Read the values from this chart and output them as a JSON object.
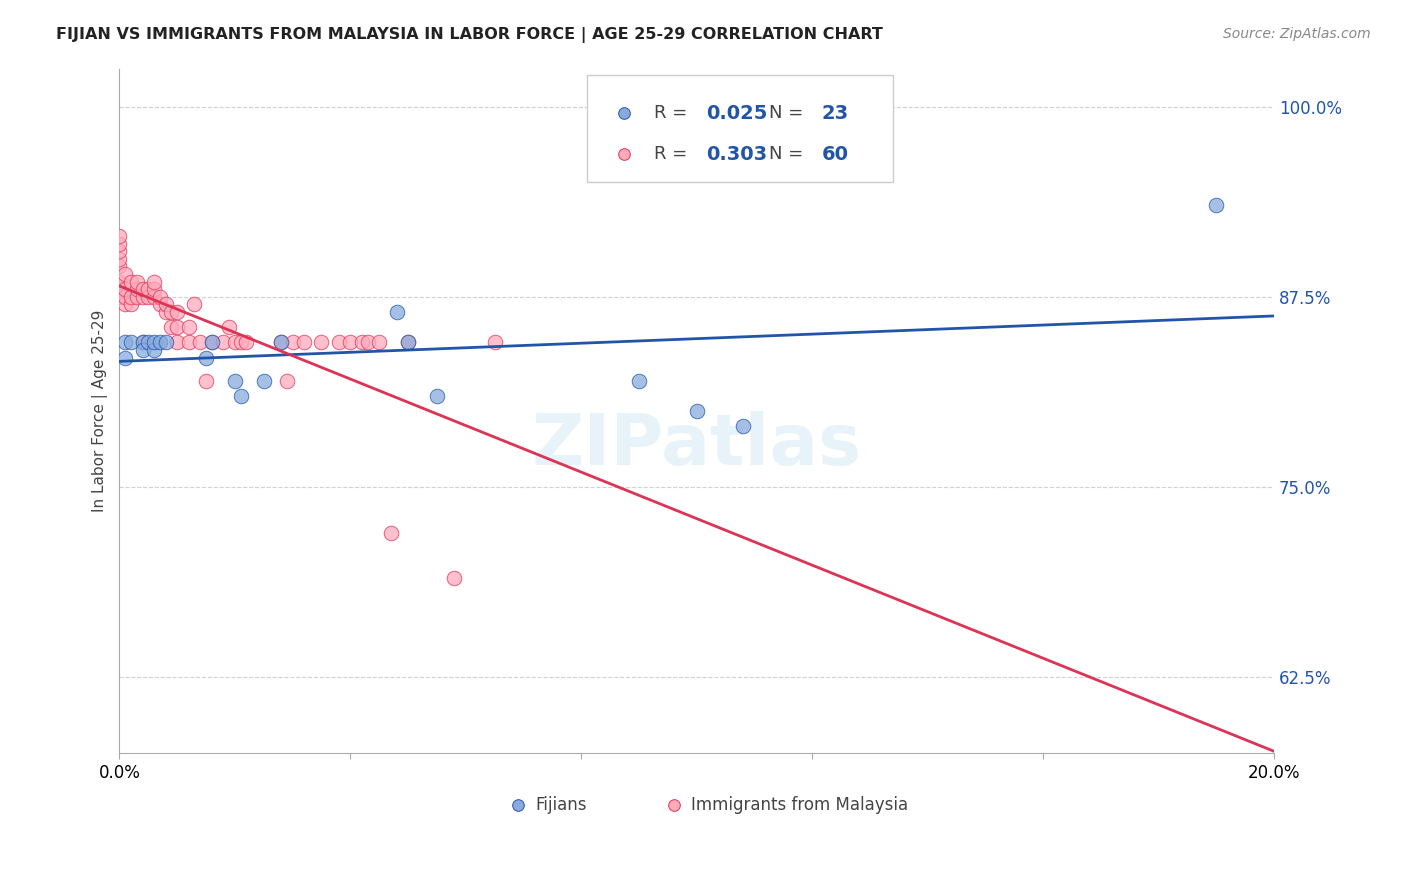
{
  "title": "FIJIAN VS IMMIGRANTS FROM MALAYSIA IN LABOR FORCE | AGE 25-29 CORRELATION CHART",
  "source": "Source: ZipAtlas.com",
  "ylabel": "In Labor Force | Age 25-29",
  "watermark": "ZIPatlas",
  "xlim": [
    0.0,
    0.2
  ],
  "ylim": [
    0.575,
    1.025
  ],
  "yticks": [
    0.625,
    0.75,
    0.875,
    1.0
  ],
  "ytick_labels": [
    "62.5%",
    "75.0%",
    "87.5%",
    "100.0%"
  ],
  "xticks": [
    0.0,
    0.04,
    0.08,
    0.12,
    0.16,
    0.2
  ],
  "xtick_labels": [
    "0.0%",
    "",
    "",
    "",
    "",
    "20.0%"
  ],
  "fijian_R": 0.025,
  "fijian_N": 23,
  "malaysia_R": 0.303,
  "malaysia_N": 60,
  "fijian_color": "#88AADD",
  "malaysia_color": "#FFAABB",
  "trend_fijian_color": "#2255AA",
  "trend_malaysia_color": "#DD3355",
  "fijian_x": [
    0.001,
    0.001,
    0.002,
    0.004,
    0.004,
    0.005,
    0.006,
    0.006,
    0.007,
    0.008,
    0.015,
    0.016,
    0.02,
    0.021,
    0.025,
    0.028,
    0.048,
    0.05,
    0.055,
    0.09,
    0.1,
    0.108,
    0.19
  ],
  "fijian_y": [
    0.845,
    0.835,
    0.845,
    0.845,
    0.84,
    0.845,
    0.84,
    0.845,
    0.845,
    0.845,
    0.835,
    0.845,
    0.82,
    0.81,
    0.82,
    0.845,
    0.865,
    0.845,
    0.81,
    0.82,
    0.8,
    0.79,
    0.935
  ],
  "malaysia_x": [
    0.0,
    0.0,
    0.0,
    0.0,
    0.0,
    0.0,
    0.0,
    0.0,
    0.001,
    0.001,
    0.001,
    0.001,
    0.002,
    0.002,
    0.002,
    0.003,
    0.003,
    0.003,
    0.004,
    0.004,
    0.004,
    0.005,
    0.005,
    0.006,
    0.006,
    0.006,
    0.007,
    0.007,
    0.008,
    0.008,
    0.009,
    0.009,
    0.01,
    0.01,
    0.01,
    0.012,
    0.012,
    0.013,
    0.014,
    0.015,
    0.016,
    0.018,
    0.019,
    0.02,
    0.021,
    0.022,
    0.028,
    0.029,
    0.03,
    0.032,
    0.035,
    0.038,
    0.04,
    0.042,
    0.043,
    0.045,
    0.047,
    0.05,
    0.058,
    0.065
  ],
  "malaysia_y": [
    0.875,
    0.88,
    0.885,
    0.895,
    0.9,
    0.905,
    0.91,
    0.915,
    0.87,
    0.875,
    0.88,
    0.89,
    0.87,
    0.875,
    0.885,
    0.875,
    0.88,
    0.885,
    0.875,
    0.88,
    0.845,
    0.875,
    0.88,
    0.875,
    0.88,
    0.885,
    0.87,
    0.875,
    0.865,
    0.87,
    0.855,
    0.865,
    0.845,
    0.855,
    0.865,
    0.845,
    0.855,
    0.87,
    0.845,
    0.82,
    0.845,
    0.845,
    0.855,
    0.845,
    0.845,
    0.845,
    0.845,
    0.82,
    0.845,
    0.845,
    0.845,
    0.845,
    0.845,
    0.845,
    0.845,
    0.845,
    0.72,
    0.845,
    0.69,
    0.845
  ],
  "legend_box_facecolor": "white",
  "legend_box_edgecolor": "#CCCCCC",
  "text_color": "#444444",
  "number_color": "#2255AA"
}
